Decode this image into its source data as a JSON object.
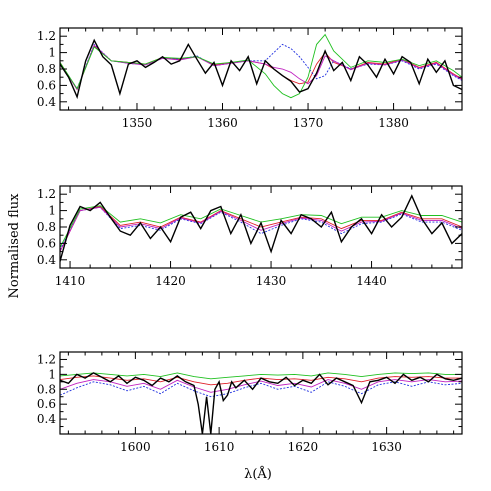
{
  "figure": {
    "ylabel": "Normalised flux",
    "xlabel": "λ(Å)"
  },
  "colors": {
    "observed": "#000000",
    "model_red": "#e0202a",
    "model_blue": "#2030e0",
    "model_magenta": "#c020c0",
    "model_green": "#20c020"
  },
  "chart_data": [
    {
      "type": "line",
      "title": "",
      "xlabel": "",
      "ylabel": "",
      "xlim": [
        1341,
        1388
      ],
      "ylim": [
        0.3,
        1.3
      ],
      "xticks": [
        1350,
        1360,
        1370,
        1380
      ],
      "yticks": [
        0.4,
        0.6,
        0.8,
        1,
        1.2
      ],
      "ytick_labels": [
        "0.4",
        "0.6",
        "0.8",
        "1",
        "1.2"
      ],
      "series": [
        {
          "color": "#000000",
          "x": [
            1341,
            1342,
            1343,
            1344,
            1345,
            1346,
            1347,
            1348,
            1349,
            1350,
            1351,
            1352,
            1353,
            1354,
            1355,
            1356,
            1357,
            1358,
            1359,
            1360,
            1361,
            1362,
            1363,
            1364,
            1365,
            1366,
            1367,
            1368,
            1369,
            1370,
            1371,
            1372,
            1373,
            1374,
            1375,
            1376,
            1377,
            1378,
            1379,
            1380,
            1381,
            1382,
            1383,
            1384,
            1385,
            1386,
            1387,
            1388
          ],
          "y": [
            0.86,
            0.7,
            0.46,
            0.9,
            1.15,
            0.95,
            0.85,
            0.5,
            0.86,
            0.9,
            0.82,
            0.88,
            0.95,
            0.86,
            0.9,
            1.1,
            0.92,
            0.75,
            0.88,
            0.6,
            0.9,
            0.78,
            0.95,
            0.62,
            0.9,
            0.8,
            0.72,
            0.65,
            0.52,
            0.56,
            0.75,
            1.02,
            0.78,
            0.88,
            0.66,
            0.95,
            0.85,
            0.7,
            0.92,
            0.74,
            0.95,
            0.88,
            0.62,
            0.92,
            0.76,
            0.9,
            0.6,
            0.55
          ]
        },
        {
          "color": "#e0202a",
          "x": [
            1341,
            1343,
            1345,
            1347,
            1349,
            1351,
            1353,
            1355,
            1357,
            1359,
            1361,
            1363,
            1365,
            1366,
            1367,
            1368,
            1369,
            1370,
            1371,
            1372,
            1373,
            1375,
            1377,
            1379,
            1381,
            1383,
            1385,
            1387,
            1388
          ],
          "y": [
            0.88,
            0.55,
            1.08,
            0.9,
            0.88,
            0.86,
            0.94,
            0.92,
            0.95,
            0.85,
            0.88,
            0.9,
            0.86,
            0.8,
            0.72,
            0.66,
            0.62,
            0.64,
            0.86,
            1.0,
            0.88,
            0.8,
            0.88,
            0.86,
            0.92,
            0.82,
            0.88,
            0.74,
            0.68
          ]
        },
        {
          "color": "#2030e0",
          "x": [
            1341,
            1343,
            1345,
            1347,
            1349,
            1351,
            1353,
            1355,
            1357,
            1359,
            1361,
            1363,
            1365,
            1366,
            1367,
            1368,
            1369,
            1370,
            1371,
            1372,
            1373,
            1375,
            1377,
            1379,
            1381,
            1383,
            1385,
            1387,
            1388
          ],
          "y": [
            0.87,
            0.56,
            1.1,
            0.9,
            0.87,
            0.85,
            0.93,
            0.92,
            0.96,
            0.84,
            0.87,
            0.9,
            0.9,
            1.0,
            1.1,
            1.05,
            0.95,
            0.82,
            0.68,
            0.72,
            0.9,
            0.8,
            0.86,
            0.85,
            0.9,
            0.8,
            0.86,
            0.72,
            0.66
          ]
        },
        {
          "color": "#c020c0",
          "x": [
            1341,
            1343,
            1345,
            1347,
            1349,
            1351,
            1353,
            1355,
            1357,
            1359,
            1361,
            1363,
            1365,
            1366,
            1367,
            1368,
            1369,
            1370,
            1371,
            1372,
            1373,
            1375,
            1377,
            1379,
            1381,
            1383,
            1385,
            1387,
            1388
          ],
          "y": [
            0.87,
            0.55,
            1.09,
            0.9,
            0.87,
            0.85,
            0.93,
            0.91,
            0.95,
            0.84,
            0.87,
            0.9,
            0.86,
            0.82,
            0.8,
            0.76,
            0.68,
            0.62,
            0.72,
            0.96,
            0.9,
            0.79,
            0.87,
            0.85,
            0.91,
            0.81,
            0.87,
            0.73,
            0.67
          ]
        },
        {
          "color": "#20c020",
          "x": [
            1341,
            1343,
            1345,
            1347,
            1349,
            1351,
            1353,
            1355,
            1357,
            1359,
            1361,
            1363,
            1365,
            1366,
            1367,
            1368,
            1369,
            1370,
            1371,
            1372,
            1373,
            1375,
            1377,
            1379,
            1381,
            1383,
            1385,
            1387,
            1388
          ],
          "y": [
            0.88,
            0.56,
            1.07,
            0.9,
            0.88,
            0.86,
            0.94,
            0.93,
            0.95,
            0.86,
            0.88,
            0.91,
            0.74,
            0.6,
            0.5,
            0.45,
            0.5,
            0.7,
            1.1,
            1.22,
            1.02,
            0.82,
            0.9,
            0.88,
            0.92,
            0.84,
            0.9,
            0.78,
            0.7
          ]
        }
      ]
    },
    {
      "type": "line",
      "title": "",
      "xlabel": "",
      "ylabel": "",
      "xlim": [
        1409,
        1449
      ],
      "ylim": [
        0.3,
        1.3
      ],
      "xticks": [
        1410,
        1420,
        1430,
        1440
      ],
      "yticks": [
        0.4,
        0.6,
        0.8,
        1,
        1.2
      ],
      "ytick_labels": [
        "0.4",
        "0.6",
        "0.8",
        "1",
        "1.2"
      ],
      "series": [
        {
          "color": "#000000",
          "x": [
            1409,
            1410,
            1411,
            1412,
            1413,
            1414,
            1415,
            1416,
            1417,
            1418,
            1419,
            1420,
            1421,
            1422,
            1423,
            1424,
            1425,
            1426,
            1427,
            1428,
            1429,
            1430,
            1431,
            1432,
            1433,
            1434,
            1435,
            1436,
            1437,
            1438,
            1439,
            1440,
            1441,
            1442,
            1443,
            1444,
            1445,
            1446,
            1447,
            1448,
            1449
          ],
          "y": [
            0.38,
            0.82,
            1.05,
            1.0,
            1.1,
            0.92,
            0.75,
            0.7,
            0.85,
            0.66,
            0.8,
            0.62,
            0.92,
            0.98,
            0.78,
            1.0,
            1.05,
            0.72,
            0.95,
            0.6,
            0.85,
            0.5,
            0.88,
            0.72,
            0.95,
            0.9,
            0.8,
            0.98,
            0.62,
            0.8,
            0.9,
            0.72,
            0.95,
            0.8,
            0.92,
            1.18,
            0.9,
            0.72,
            0.85,
            0.6,
            0.72
          ]
        },
        {
          "color": "#e0202a",
          "x": [
            1409,
            1411,
            1413,
            1415,
            1417,
            1419,
            1421,
            1423,
            1425,
            1427,
            1429,
            1431,
            1433,
            1435,
            1437,
            1439,
            1441,
            1443,
            1445,
            1447,
            1449
          ],
          "y": [
            0.5,
            1.0,
            1.05,
            0.82,
            0.86,
            0.8,
            0.92,
            0.86,
            1.0,
            0.9,
            0.8,
            0.86,
            0.92,
            0.9,
            0.78,
            0.88,
            0.88,
            0.98,
            0.9,
            0.9,
            0.8
          ]
        },
        {
          "color": "#2030e0",
          "x": [
            1409,
            1411,
            1413,
            1415,
            1417,
            1419,
            1421,
            1423,
            1425,
            1427,
            1429,
            1431,
            1433,
            1435,
            1437,
            1439,
            1441,
            1443,
            1445,
            1447,
            1449
          ],
          "y": [
            0.52,
            1.0,
            1.04,
            0.78,
            0.82,
            0.76,
            0.9,
            0.84,
            0.98,
            0.86,
            0.72,
            0.82,
            0.9,
            0.86,
            0.72,
            0.84,
            0.86,
            0.96,
            0.86,
            0.86,
            0.76
          ]
        },
        {
          "color": "#c020c0",
          "x": [
            1409,
            1411,
            1413,
            1415,
            1417,
            1419,
            1421,
            1423,
            1425,
            1427,
            1429,
            1431,
            1433,
            1435,
            1437,
            1439,
            1441,
            1443,
            1445,
            1447,
            1449
          ],
          "y": [
            0.5,
            1.0,
            1.04,
            0.8,
            0.84,
            0.78,
            0.91,
            0.85,
            0.99,
            0.88,
            0.76,
            0.84,
            0.91,
            0.88,
            0.75,
            0.86,
            0.87,
            0.97,
            0.88,
            0.88,
            0.78
          ]
        },
        {
          "color": "#20c020",
          "x": [
            1409,
            1411,
            1413,
            1415,
            1417,
            1419,
            1421,
            1423,
            1425,
            1427,
            1429,
            1431,
            1433,
            1435,
            1437,
            1439,
            1441,
            1443,
            1445,
            1447,
            1449
          ],
          "y": [
            0.55,
            1.02,
            1.06,
            0.86,
            0.9,
            0.85,
            0.95,
            0.9,
            1.02,
            0.94,
            0.86,
            0.9,
            0.95,
            0.94,
            0.84,
            0.92,
            0.92,
            1.0,
            0.94,
            0.94,
            0.86
          ]
        }
      ]
    },
    {
      "type": "line",
      "title": "",
      "xlabel": "",
      "ylabel": "",
      "xlim": [
        1591,
        1639
      ],
      "ylim": [
        0.2,
        1.3
      ],
      "xticks": [
        1600,
        1610,
        1620,
        1630
      ],
      "yticks": [
        0.4,
        0.6,
        0.8,
        1,
        1.2
      ],
      "ytick_labels": [
        "0.4",
        "0.6",
        "0.8",
        "1",
        "1.2"
      ],
      "series": [
        {
          "color": "#000000",
          "x": [
            1591,
            1592,
            1593,
            1594,
            1595,
            1596,
            1597,
            1598,
            1599,
            1600,
            1601,
            1602,
            1603,
            1604,
            1605,
            1606,
            1607,
            1607.5,
            1608,
            1608.5,
            1609,
            1609.5,
            1610,
            1610.5,
            1611,
            1611.5,
            1612,
            1613,
            1614,
            1615,
            1616,
            1617,
            1618,
            1619,
            1620,
            1621,
            1622,
            1623,
            1624,
            1625,
            1626,
            1627,
            1628,
            1629,
            1630,
            1631,
            1632,
            1633,
            1634,
            1635,
            1636,
            1637,
            1638,
            1639
          ],
          "y": [
            0.92,
            0.88,
            1.0,
            0.95,
            1.02,
            0.96,
            0.9,
            0.98,
            0.88,
            0.96,
            0.92,
            0.85,
            0.95,
            0.9,
            0.98,
            0.9,
            0.85,
            0.6,
            0.2,
            0.7,
            0.2,
            0.8,
            0.9,
            0.65,
            0.72,
            0.9,
            0.82,
            0.92,
            0.8,
            0.95,
            0.9,
            0.88,
            0.96,
            0.85,
            0.92,
            0.88,
            1.0,
            0.86,
            0.95,
            0.9,
            0.85,
            0.62,
            0.9,
            0.92,
            0.96,
            0.88,
            1.0,
            0.92,
            0.96,
            0.9,
            1.0,
            0.94,
            0.92,
            0.95
          ]
        },
        {
          "color": "#e0202a",
          "x": [
            1591,
            1593,
            1595,
            1597,
            1599,
            1601,
            1603,
            1605,
            1607,
            1609,
            1611,
            1613,
            1615,
            1617,
            1619,
            1621,
            1623,
            1625,
            1627,
            1629,
            1631,
            1633,
            1635,
            1637,
            1639
          ],
          "y": [
            0.93,
            0.96,
            0.98,
            0.95,
            0.92,
            0.94,
            0.9,
            0.96,
            0.9,
            0.86,
            0.88,
            0.92,
            0.95,
            0.93,
            0.94,
            0.92,
            0.96,
            0.94,
            0.9,
            0.95,
            0.97,
            0.96,
            0.97,
            0.95,
            0.95
          ]
        },
        {
          "color": "#2030e0",
          "x": [
            1591,
            1593,
            1595,
            1597,
            1599,
            1601,
            1603,
            1605,
            1607,
            1609,
            1611,
            1613,
            1615,
            1617,
            1619,
            1621,
            1623,
            1625,
            1627,
            1629,
            1631,
            1633,
            1635,
            1637,
            1639
          ],
          "y": [
            0.72,
            0.82,
            0.9,
            0.86,
            0.78,
            0.84,
            0.74,
            0.88,
            0.78,
            0.7,
            0.74,
            0.82,
            0.88,
            0.8,
            0.84,
            0.76,
            0.9,
            0.84,
            0.74,
            0.86,
            0.9,
            0.84,
            0.9,
            0.86,
            0.88
          ]
        },
        {
          "color": "#c020c0",
          "x": [
            1591,
            1593,
            1595,
            1597,
            1599,
            1601,
            1603,
            1605,
            1607,
            1609,
            1611,
            1613,
            1615,
            1617,
            1619,
            1621,
            1623,
            1625,
            1627,
            1629,
            1631,
            1633,
            1635,
            1637,
            1639
          ],
          "y": [
            0.8,
            0.88,
            0.93,
            0.9,
            0.84,
            0.88,
            0.8,
            0.92,
            0.83,
            0.76,
            0.8,
            0.86,
            0.91,
            0.85,
            0.88,
            0.83,
            0.93,
            0.88,
            0.8,
            0.9,
            0.93,
            0.9,
            0.93,
            0.9,
            0.91
          ]
        },
        {
          "color": "#20c020",
          "x": [
            1591,
            1593,
            1595,
            1597,
            1599,
            1601,
            1603,
            1605,
            1607,
            1609,
            1611,
            1613,
            1615,
            1617,
            1619,
            1621,
            1623,
            1625,
            1627,
            1629,
            1631,
            1633,
            1635,
            1637,
            1639
          ],
          "y": [
            0.98,
            1.0,
            1.02,
            1.0,
            0.98,
            1.0,
            0.97,
            1.02,
            0.97,
            0.94,
            0.96,
            0.98,
            1.0,
            0.99,
            1.0,
            0.98,
            1.02,
            1.0,
            0.97,
            1.0,
            1.02,
            1.01,
            1.02,
            1.0,
            1.0
          ]
        }
      ]
    }
  ]
}
